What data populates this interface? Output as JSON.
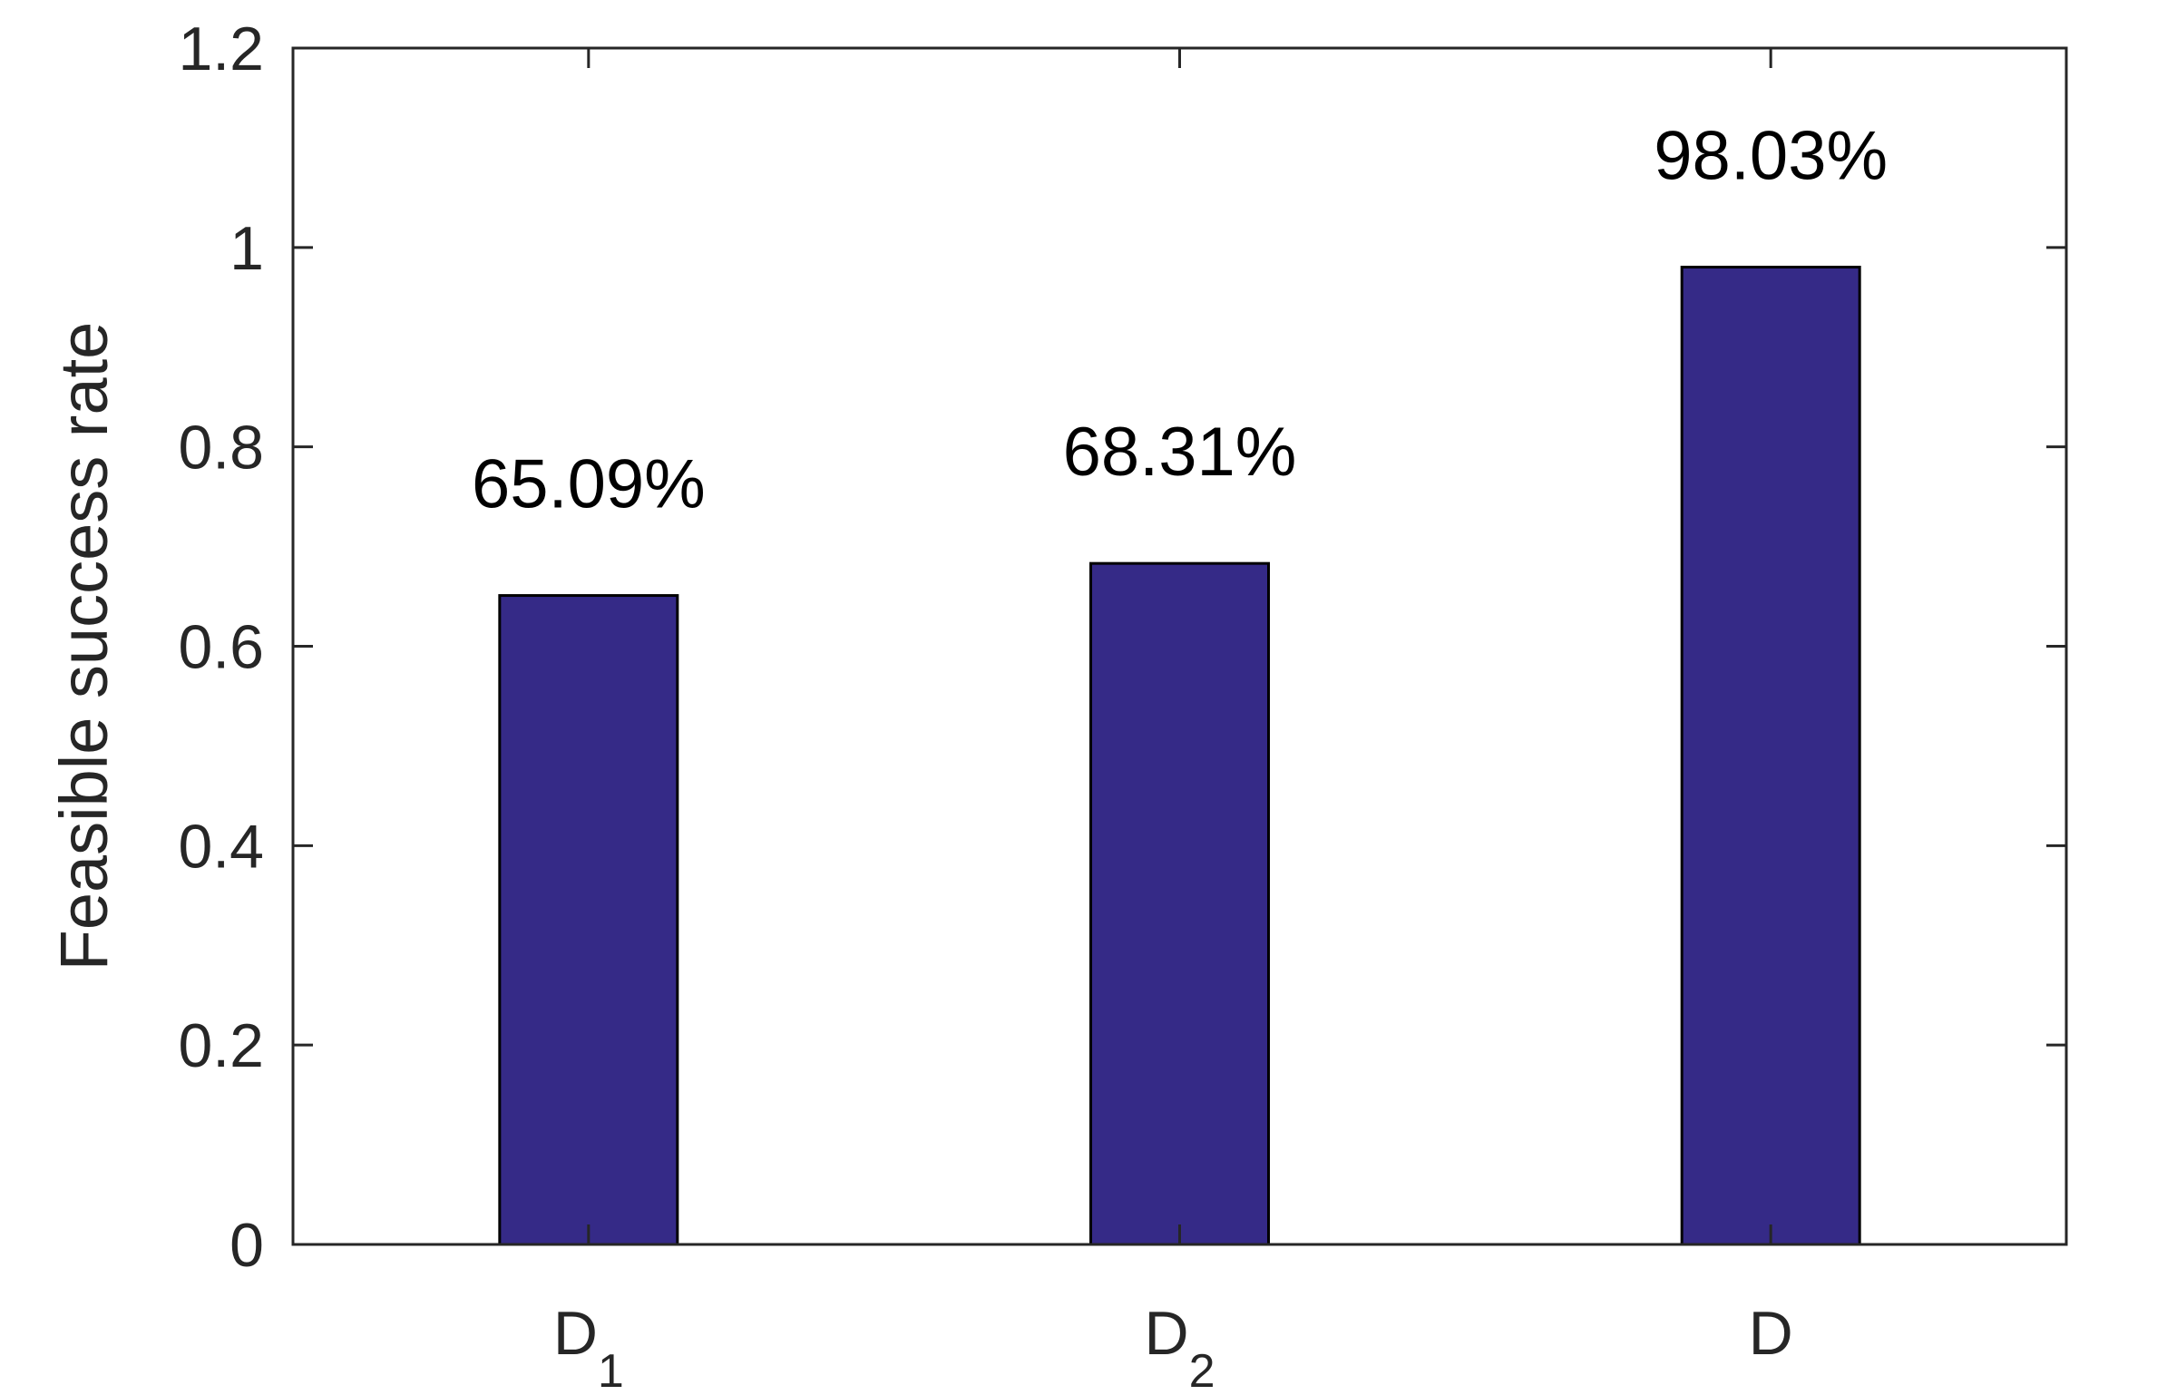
{
  "chart_data": {
    "type": "bar",
    "categories": [
      {
        "base": "D",
        "sub": "1"
      },
      {
        "base": "D",
        "sub": "2"
      },
      {
        "base": "D",
        "sub": ""
      }
    ],
    "values": [
      0.6509,
      0.6831,
      0.9803
    ],
    "data_labels": [
      "65.09%",
      "68.31%",
      "98.03%"
    ],
    "xlabel": "",
    "ylabel": "Feasible success rate",
    "ylim": [
      0,
      1.2
    ],
    "yticks": [
      0,
      0.2,
      0.4,
      0.6,
      0.8,
      1,
      1.2
    ],
    "ytick_labels": [
      "0",
      "0.2",
      "0.4",
      "0.6",
      "0.8",
      "1",
      "1.2"
    ],
    "grid": false,
    "legend": "none",
    "bar_color": "#352a87",
    "bar_edge_color": "#000000",
    "axis_color": "#262626"
  }
}
